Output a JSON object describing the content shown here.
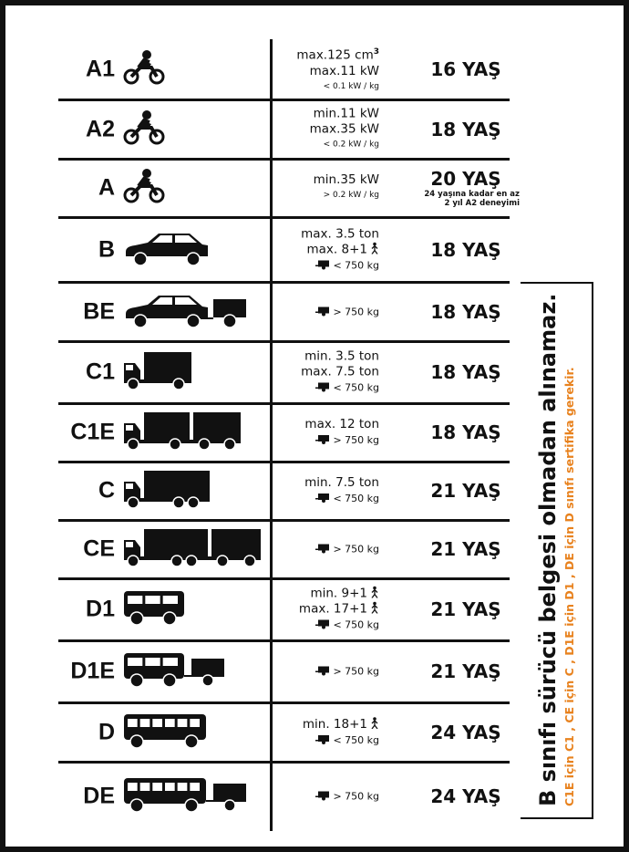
{
  "rows": [
    {
      "class": "A1",
      "icon": "motorcycle",
      "specs": [
        {
          "text": "max.125 cm",
          "sup": "3"
        },
        {
          "text": "max.11 kW"
        },
        {
          "text": "< 0.1 kW / kg",
          "small": true
        }
      ],
      "age": "16 YAŞ"
    },
    {
      "class": "A2",
      "icon": "motorcycle",
      "specs": [
        {
          "text": "min.11 kW"
        },
        {
          "text": "max.35 kW"
        },
        {
          "text": "< 0.2 kW / kg",
          "small": true
        }
      ],
      "age": "18 YAŞ"
    },
    {
      "class": "A",
      "icon": "motorcycle",
      "specs": [
        {
          "text": "min.35 kW"
        },
        {
          "text": "> 0.2 kW / kg",
          "small": true
        }
      ],
      "age": "20 YAŞ",
      "note": [
        "24 yaşına kadar en az",
        "2 yıl A2 deneyimi"
      ]
    },
    {
      "class": "B",
      "icon": "car",
      "specs": [
        {
          "text": "max. 3.5 ton"
        },
        {
          "text": "max. 8+1",
          "person": true
        },
        {
          "text": "< 750 kg",
          "trailer": true
        }
      ],
      "age": "18 YAŞ"
    },
    {
      "class": "BE",
      "icon": "car-trailer",
      "specs": [
        {
          "text": "> 750 kg",
          "trailer": true
        }
      ],
      "age": "18 YAŞ"
    },
    {
      "class": "C1",
      "icon": "small-truck",
      "specs": [
        {
          "text": "min. 3.5 ton"
        },
        {
          "text": "max. 7.5 ton"
        },
        {
          "text": "< 750 kg",
          "trailer": true
        }
      ],
      "age": "18 YAŞ"
    },
    {
      "class": "C1E",
      "icon": "small-truck-trailer",
      "specs": [
        {
          "text": "max. 12 ton"
        },
        {
          "text": "> 750 kg",
          "trailer": true
        }
      ],
      "age": "18 YAŞ"
    },
    {
      "class": "C",
      "icon": "truck",
      "specs": [
        {
          "text": "min. 7.5 ton"
        },
        {
          "text": "< 750 kg",
          "trailer": true
        }
      ],
      "age": "21 YAŞ"
    },
    {
      "class": "CE",
      "icon": "truck-trailer",
      "specs": [
        {
          "text": "> 750 kg",
          "trailer": true
        }
      ],
      "age": "21 YAŞ"
    },
    {
      "class": "D1",
      "icon": "minibus",
      "specs": [
        {
          "text": "min. 9+1",
          "person": true
        },
        {
          "text": "max. 17+1",
          "person": true
        },
        {
          "text": "< 750 kg",
          "trailer": true
        }
      ],
      "age": "21 YAŞ"
    },
    {
      "class": "D1E",
      "icon": "minibus-trailer",
      "specs": [
        {
          "text": "> 750 kg",
          "trailer": true
        }
      ],
      "age": "21 YAŞ"
    },
    {
      "class": "D",
      "icon": "bus",
      "specs": [
        {
          "text": "min. 18+1",
          "person": true
        },
        {
          "text": "< 750 kg",
          "trailer": true
        }
      ],
      "age": "24 YAŞ"
    },
    {
      "class": "DE",
      "icon": "bus-trailer",
      "specs": [
        {
          "text": "> 750 kg",
          "trailer": true
        }
      ],
      "age": "24 YAŞ"
    }
  ],
  "side_note": {
    "main": "B sınıfı sürücü belgesi olmadan alınamaz.",
    "sub": "C1E için C1 , CE için C , D1E için D1 , DE için D sınıfı sertifika gerekir.",
    "sub_color": "#e8821e"
  }
}
